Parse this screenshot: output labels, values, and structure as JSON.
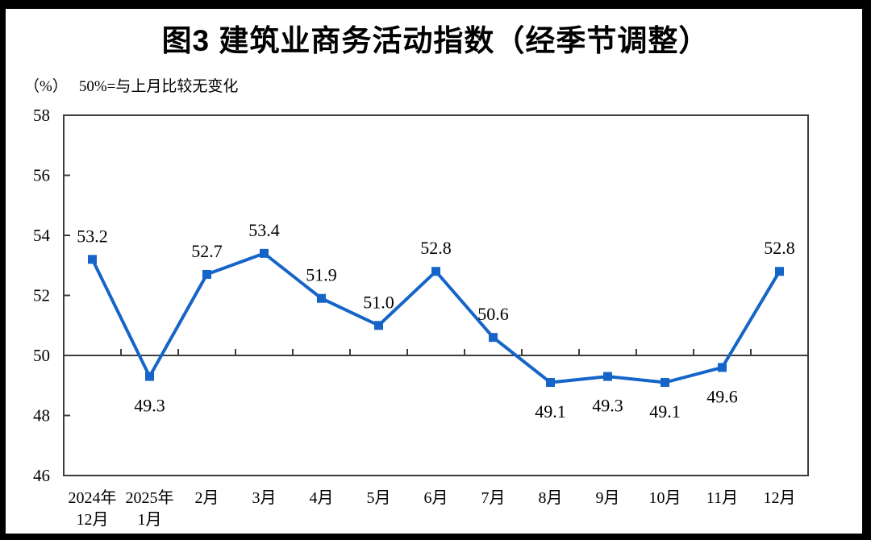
{
  "page": {
    "title": "图3  建筑业商务活动指数（经季节调整）",
    "unit_label": "（%）",
    "baseline_note": "50%=与上月比较无变化"
  },
  "chart_data": {
    "type": "line",
    "title": "图3  建筑业商务活动指数（经季节调整）",
    "unit": "（%）",
    "note": "50%=与上月比较无变化",
    "categories": [
      "2024年\n12月",
      "2025年\n1月",
      "2月",
      "3月",
      "4月",
      "5月",
      "6月",
      "7月",
      "8月",
      "9月",
      "10月",
      "11月",
      "12月"
    ],
    "values": [
      53.2,
      49.3,
      52.7,
      53.4,
      51.9,
      51.0,
      52.8,
      50.6,
      49.1,
      49.3,
      49.1,
      49.6,
      52.8
    ],
    "label_side": [
      "above",
      "below",
      "above",
      "above",
      "above",
      "above",
      "above",
      "above",
      "below",
      "below",
      "below",
      "below",
      "above"
    ],
    "ylim": [
      46,
      58
    ],
    "y_ticks": [
      58,
      56,
      54,
      52,
      50,
      48,
      46
    ],
    "reference_line": 50,
    "grid": false,
    "legend": "none",
    "marker": "square",
    "colors": {
      "line": "#1565C8",
      "marker": "#1565C8",
      "axis": "#3d3d3d",
      "text": "#000000"
    }
  }
}
